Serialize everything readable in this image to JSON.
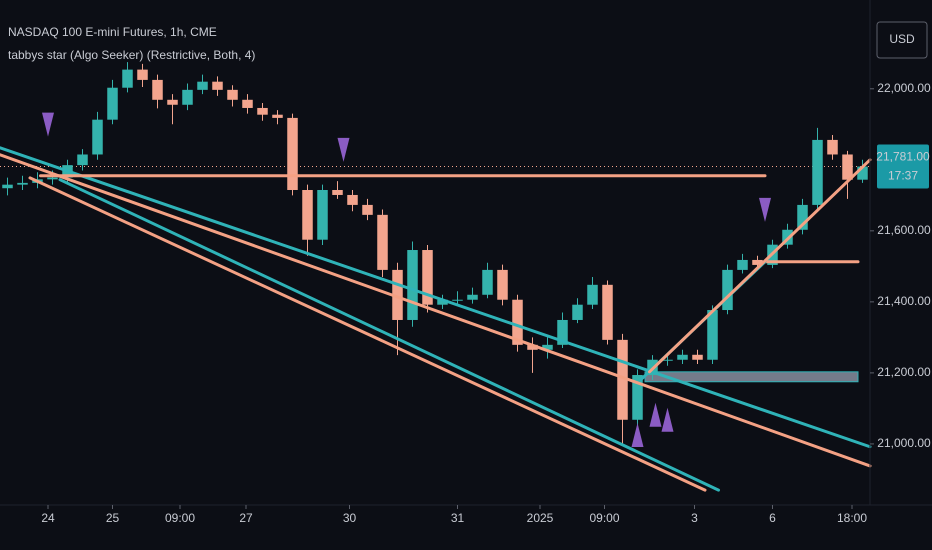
{
  "chart_data": {
    "type": "candlestick",
    "title": "NASDAQ 100 E-mini Futures, 1h, CME",
    "indicator": "tabbys star (Algo Seeker) (Restrictive, Both, 4)",
    "currency": "USD",
    "last_price": {
      "value": 21781,
      "label": "21,781.00"
    },
    "countdown": "17:37",
    "colors": {
      "up": "#34b3ac",
      "down": "#f3a58e",
      "signal": "#8b5cc4",
      "price_tag": "#1b9aa6"
    },
    "candles": [
      [
        21720,
        21750,
        21700,
        21730
      ],
      [
        21730,
        21755,
        21715,
        21735
      ],
      [
        21735,
        21765,
        21720,
        21745
      ],
      [
        21745,
        21770,
        21730,
        21750
      ],
      [
        21750,
        21800,
        21735,
        21785
      ],
      [
        21785,
        21830,
        21770,
        21815
      ],
      [
        21815,
        21935,
        21800,
        21913
      ],
      [
        21913,
        22025,
        21900,
        22003
      ],
      [
        22003,
        22075,
        21990,
        22054
      ],
      [
        22054,
        22070,
        22005,
        22025
      ],
      [
        22025,
        22040,
        21945,
        21969
      ],
      [
        21969,
        21985,
        21900,
        21955
      ],
      [
        21955,
        22015,
        21940,
        21997
      ],
      [
        21997,
        22040,
        21985,
        22020
      ],
      [
        22020,
        22035,
        21980,
        21997
      ],
      [
        21997,
        22010,
        21950,
        21969
      ],
      [
        21969,
        21985,
        21930,
        21946
      ],
      [
        21946,
        21960,
        21910,
        21927
      ],
      [
        21927,
        21940,
        21900,
        21918
      ],
      [
        21918,
        21930,
        21700,
        21715
      ],
      [
        21715,
        21730,
        21530,
        21575
      ],
      [
        21575,
        21730,
        21560,
        21715
      ],
      [
        21715,
        21740,
        21690,
        21701
      ],
      [
        21701,
        21715,
        21655,
        21673
      ],
      [
        21673,
        21690,
        21630,
        21645
      ],
      [
        21645,
        21660,
        21470,
        21490
      ],
      [
        21490,
        21510,
        21250,
        21349
      ],
      [
        21349,
        21570,
        21330,
        21546
      ],
      [
        21546,
        21560,
        21370,
        21392
      ],
      [
        21392,
        21420,
        21380,
        21406
      ],
      [
        21406,
        21430,
        21390,
        21406
      ],
      [
        21406,
        21440,
        21395,
        21420
      ],
      [
        21420,
        21510,
        21410,
        21490
      ],
      [
        21490,
        21505,
        21390,
        21406
      ],
      [
        21406,
        21420,
        21260,
        21279
      ],
      [
        21279,
        21300,
        21200,
        21265
      ],
      [
        21265,
        21300,
        21240,
        21279
      ],
      [
        21279,
        21370,
        21270,
        21349
      ],
      [
        21349,
        21410,
        21340,
        21392
      ],
      [
        21392,
        21470,
        21380,
        21448
      ],
      [
        21448,
        21460,
        21280,
        21293
      ],
      [
        21293,
        21310,
        21000,
        21068
      ],
      [
        21068,
        21210,
        21050,
        21194
      ],
      [
        21194,
        21250,
        21180,
        21237
      ],
      [
        21237,
        21255,
        21220,
        21237
      ],
      [
        21237,
        21265,
        21225,
        21251
      ],
      [
        21251,
        21265,
        21225,
        21237
      ],
      [
        21237,
        21390,
        21225,
        21377
      ],
      [
        21377,
        21505,
        21365,
        21490
      ],
      [
        21490,
        21535,
        21480,
        21518
      ],
      [
        21518,
        21530,
        21495,
        21504
      ],
      [
        21504,
        21575,
        21495,
        21561
      ],
      [
        21561,
        21620,
        21550,
        21603
      ],
      [
        21603,
        21690,
        21590,
        21673
      ],
      [
        21673,
        21890,
        21660,
        21856
      ],
      [
        21856,
        21870,
        21800,
        21815
      ],
      [
        21815,
        21825,
        21690,
        21744
      ],
      [
        21744,
        21800,
        21735,
        21781
      ]
    ],
    "xlim": [
      0,
      58
    ],
    "xticks": [
      {
        "value": 3.2,
        "label": "24"
      },
      {
        "value": 7.5,
        "label": "25"
      },
      {
        "value": 12,
        "label": "09:00"
      },
      {
        "value": 16.4,
        "label": "27"
      },
      {
        "value": 23.3,
        "label": "30"
      },
      {
        "value": 30.5,
        "label": "31"
      },
      {
        "value": 36,
        "label": "2025"
      },
      {
        "value": 40.3,
        "label": "09:00"
      },
      {
        "value": 46.3,
        "label": "3"
      },
      {
        "value": 51.5,
        "label": "6"
      },
      {
        "value": 56.8,
        "label": "18:00"
      }
    ],
    "ylim": [
      20828,
      22250
    ],
    "yticks": [
      {
        "value": 21000,
        "label": "21,000.00"
      },
      {
        "value": 21200,
        "label": "21,200.00"
      },
      {
        "value": 21400,
        "label": "21,400.00"
      },
      {
        "value": 21600,
        "label": "21,600.00"
      },
      {
        "value": 22000,
        "label": "22,000.00"
      }
    ],
    "lines": [
      {
        "color": "#2fb3b8",
        "x": [
          0,
          58
        ],
        "y": [
          21834,
          20992
        ]
      },
      {
        "color": "#f4a184",
        "x": [
          0,
          58
        ],
        "y": [
          21814,
          20938
        ]
      },
      {
        "color": "#f4a184",
        "x": [
          2,
          47
        ],
        "y": [
          21749,
          20870
        ]
      },
      {
        "color": "#2fb3b8",
        "x": [
          4,
          47.9
        ],
        "y": [
          21744,
          20870
        ]
      },
      {
        "color": "#f4a184",
        "x": [
          2.7,
          51
        ],
        "y": [
          21755,
          21755
        ]
      },
      {
        "color": "#f4a184",
        "x": [
          51,
          57.2
        ],
        "y": [
          21513,
          21513
        ]
      },
      {
        "color": "#2fb3b8",
        "x": [
          42.7,
          51
        ],
        "y": [
          21180,
          21513
        ]
      },
      {
        "color": "#f4a184",
        "x": [
          43.3,
          58
        ],
        "y": [
          21203,
          21800
        ]
      }
    ],
    "zones": [
      {
        "color": "#8f97a8",
        "x": [
          43,
          57.2
        ],
        "y": [
          21175,
          21203
        ]
      }
    ],
    "signals": [
      {
        "direction": "down",
        "x": 3.2,
        "y": 21899
      },
      {
        "direction": "down",
        "x": 22.9,
        "y": 21828
      },
      {
        "direction": "down",
        "x": 51,
        "y": 21659
      },
      {
        "direction": "up",
        "x": 42.5,
        "y": 21025
      },
      {
        "direction": "up",
        "x": 43.7,
        "y": 21082
      },
      {
        "direction": "up",
        "x": 44.5,
        "y": 21068
      }
    ]
  }
}
